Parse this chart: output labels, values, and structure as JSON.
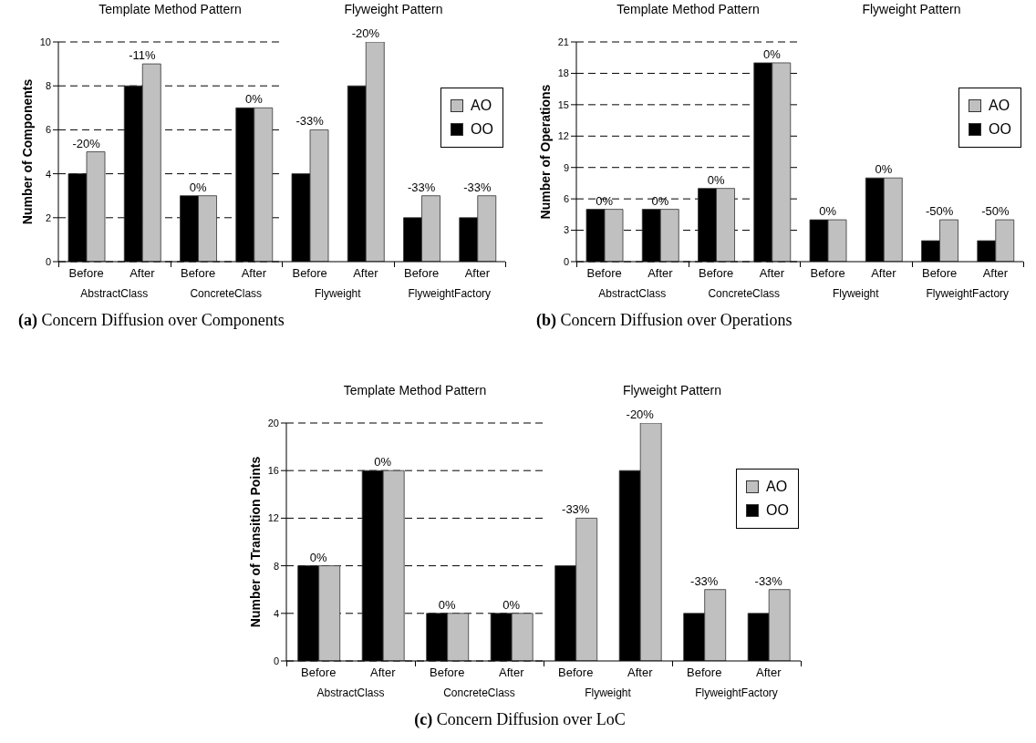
{
  "chart_data": [
    {
      "type": "bar",
      "title": "Template Method Pattern",
      "ylabel": "Number of Components",
      "categories": [
        "Before",
        "After",
        "Before",
        "After"
      ],
      "series": [
        {
          "color": "#000000",
          "values": [
            4,
            8,
            3,
            7
          ]
        },
        {
          "color": "#c0c0c0",
          "values": [
            5,
            9,
            3,
            7
          ]
        }
      ],
      "ylim": [
        0,
        10
      ],
      "yticks": [
        0,
        2,
        4,
        6,
        8,
        10
      ],
      "grid": "y",
      "annotations": [
        "AbstractClass",
        "ConcreteClass",
        "(a) Concern Diffusion over Components",
        {
          "text": "-20%",
          "y": 5
        },
        {
          "text": "-11%",
          "y": 9
        },
        {
          "text": "0%",
          "y": 3
        },
        {
          "text": "0%",
          "y": 7
        }
      ]
    },
    {
      "type": "bar",
      "title": "Flyweight Pattern",
      "categories": [
        "Before",
        "After",
        "Before",
        "After"
      ],
      "series": [
        {
          "name": "OO",
          "color": "#000000",
          "values": [
            4,
            8,
            2,
            2
          ]
        },
        {
          "name": "AO",
          "color": "#c0c0c0",
          "values": [
            6,
            10,
            3,
            3
          ]
        }
      ],
      "ylim": [
        0,
        10
      ],
      "yticks": [
        0,
        2,
        4,
        6,
        8,
        10
      ],
      "grid": "y",
      "legend": "top right",
      "tick_labels": "x",
      "annotations": [
        "Flyweight",
        "FlyweightFactory",
        {
          "text": "-33%",
          "y": 6
        },
        {
          "text": "-20%",
          "y": 10
        },
        {
          "text": "-33%",
          "y": 3
        },
        {
          "text": "-33%",
          "y": 3
        }
      ]
    },
    {
      "type": "bar",
      "title": "Template Method Pattern",
      "ylabel": "Number of Operations",
      "categories": [
        "Before",
        "After",
        "Before",
        "After"
      ],
      "series": [
        {
          "color": "#000000",
          "values": [
            5,
            5,
            7,
            19
          ]
        },
        {
          "color": "#c0c0c0",
          "values": [
            5,
            5,
            7,
            19
          ]
        }
      ],
      "ylim": [
        0,
        21
      ],
      "yticks": [
        0,
        3,
        6,
        9,
        12,
        15,
        18,
        21
      ],
      "grid": "y",
      "annotations": [
        "AbstractClass",
        "ConcreteClass",
        "(b) Concern Diffusion over Operations",
        {
          "text": "0%",
          "y": 5
        },
        {
          "text": "0%",
          "y": 5
        },
        {
          "text": "0%",
          "y": 7
        },
        {
          "text": "0%",
          "y": 19
        }
      ]
    },
    {
      "type": "bar",
      "title": "Flyweight Pattern",
      "categories": [
        "Before",
        "After",
        "Before",
        "After"
      ],
      "series": [
        {
          "name": "OO",
          "color": "#000000",
          "values": [
            4,
            8,
            2,
            2
          ]
        },
        {
          "name": "AO",
          "color": "#c0c0c0",
          "values": [
            4,
            8,
            4,
            4
          ]
        }
      ],
      "ylim": [
        0,
        21
      ],
      "yticks": [
        0,
        3,
        6,
        9,
        12,
        15,
        18,
        21
      ],
      "grid": "y",
      "legend": "top right",
      "tick_labels": "x",
      "annotations": [
        "Flyweight",
        "FlyweightFactory",
        {
          "text": "0%",
          "y": 4
        },
        {
          "text": "0%",
          "y": 8
        },
        {
          "text": "-50%",
          "y": 4
        },
        {
          "text": "-50%",
          "y": 4
        }
      ]
    },
    {
      "type": "bar",
      "title": "Template Method Pattern",
      "ylabel": "Number of Transition Points",
      "categories": [
        "Before",
        "After",
        "Before",
        "After"
      ],
      "series": [
        {
          "color": "#000000",
          "values": [
            8,
            16,
            4,
            4
          ]
        },
        {
          "color": "#c0c0c0",
          "values": [
            8,
            16,
            4,
            4
          ]
        }
      ],
      "ylim": [
        0,
        20
      ],
      "yticks": [
        0,
        4,
        8,
        12,
        16,
        20
      ],
      "grid": "y",
      "annotations": [
        "AbstractClass",
        "ConcreteClass",
        "(c) Concern Diffusion over LoC",
        {
          "text": "0%",
          "y": 8
        },
        {
          "text": "0%",
          "y": 16
        },
        {
          "text": "0%",
          "y": 4
        },
        {
          "text": "0%",
          "y": 4
        }
      ]
    },
    {
      "type": "bar",
      "title": "Flyweight Pattern",
      "categories": [
        "Before",
        "After",
        "Before",
        "After"
      ],
      "series": [
        {
          "name": "OO",
          "color": "#000000",
          "values": [
            8,
            16,
            4,
            4
          ]
        },
        {
          "name": "AO",
          "color": "#c0c0c0",
          "values": [
            12,
            20,
            6,
            6
          ]
        }
      ],
      "ylim": [
        0,
        20
      ],
      "yticks": [
        0,
        4,
        8,
        12,
        16,
        20
      ],
      "grid": "y",
      "legend": "top right",
      "tick_labels": "x",
      "annotations": [
        "Flyweight",
        "FlyweightFactory",
        {
          "text": "-33%",
          "y": 12
        },
        {
          "text": "-20%",
          "y": 20
        },
        {
          "text": "-33%",
          "y": 6
        },
        {
          "text": "-33%",
          "y": 6
        }
      ]
    }
  ]
}
